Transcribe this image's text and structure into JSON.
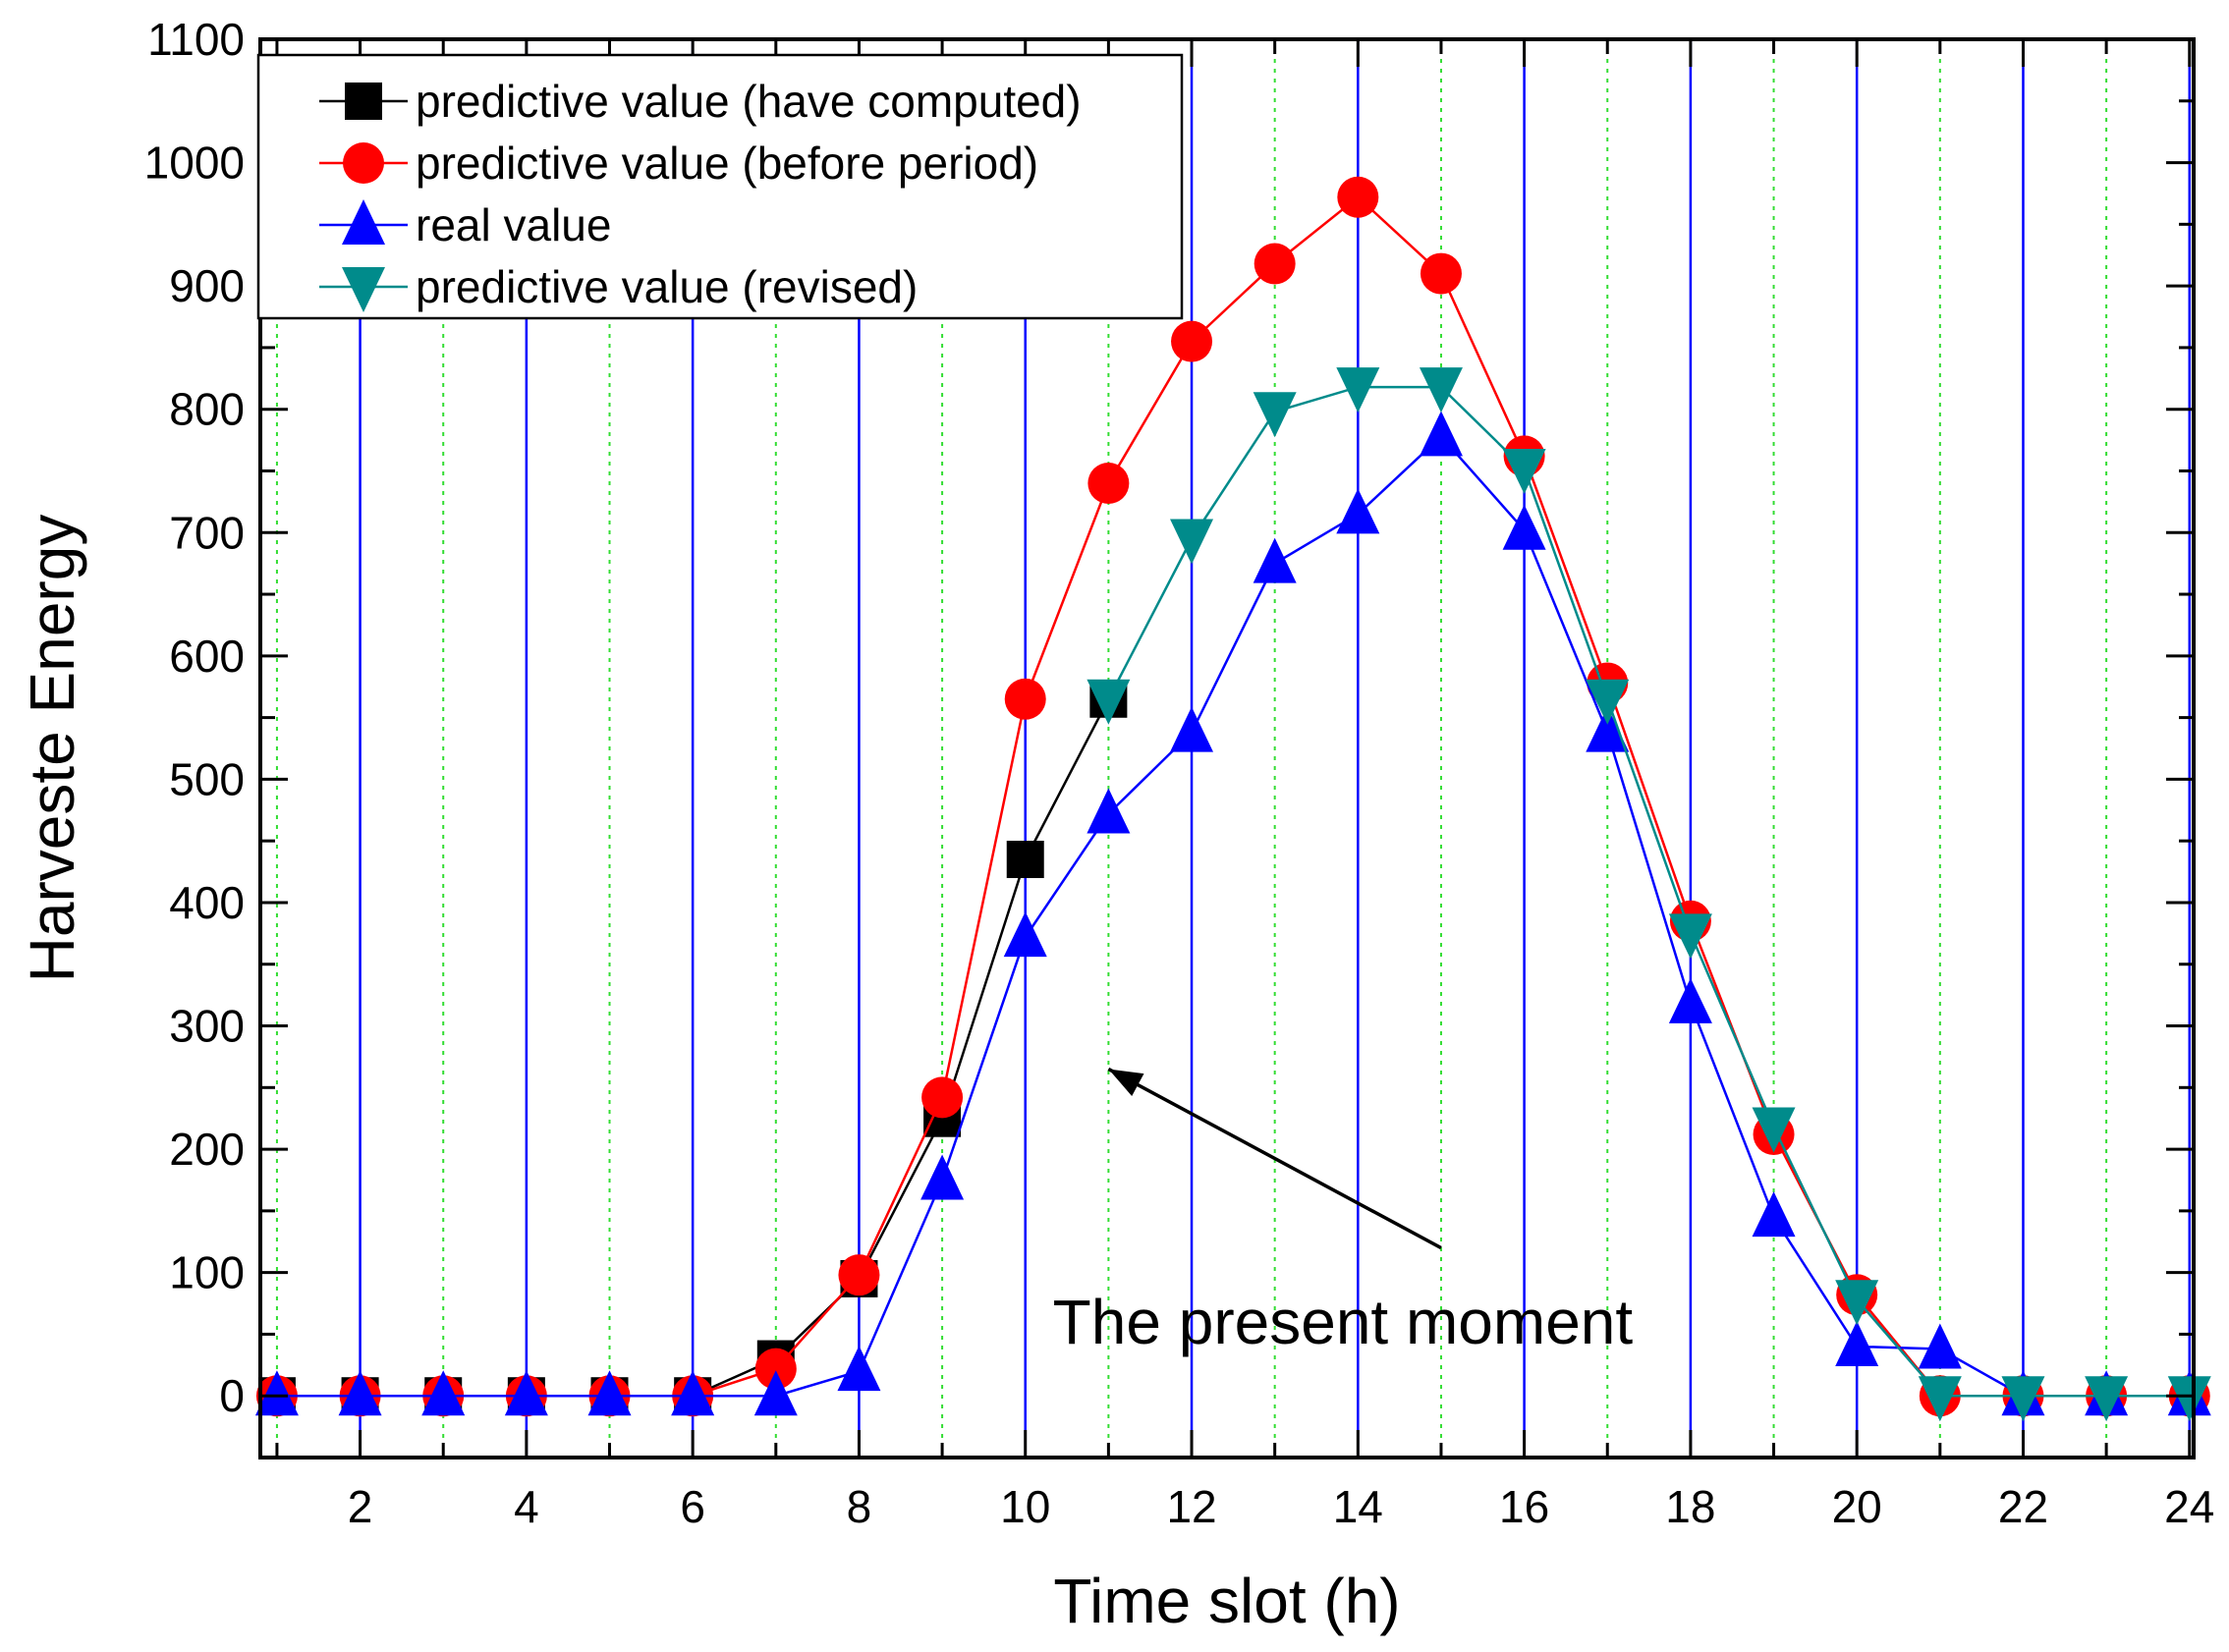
{
  "chart_data": {
    "type": "line",
    "title": "",
    "xlabel": "Time slot  (h)",
    "ylabel": "Harveste Energy",
    "xlim": [
      0.8,
      24.05
    ],
    "ylim": [
      -50,
      1100
    ],
    "x_ticks": [
      2,
      4,
      6,
      8,
      10,
      12,
      14,
      16,
      18,
      20,
      22,
      24
    ],
    "x_tick_labels": [
      "2",
      "4",
      "6",
      "8",
      "10",
      "12",
      "14",
      "16",
      "18",
      "20",
      "22",
      "24"
    ],
    "y_ticks": [
      0,
      100,
      200,
      300,
      400,
      500,
      600,
      700,
      800,
      900,
      1000,
      1100
    ],
    "y_tick_labels": [
      "0",
      "100",
      "200",
      "300",
      "400",
      "500",
      "600",
      "700",
      "800",
      "900",
      "1000",
      "1100"
    ],
    "major_grid_x": [
      2,
      4,
      6,
      8,
      10,
      12,
      14,
      16,
      18,
      20,
      22,
      24
    ],
    "minor_grid_x": [
      1,
      3,
      5,
      7,
      9,
      11,
      13,
      15,
      17,
      19,
      21,
      23
    ],
    "grid_colors": {
      "major": "#0000ff",
      "minor": "#33dd33"
    },
    "legend_position": "top-left",
    "series": [
      {
        "name": "predictive value (have computed)",
        "color": "#000000",
        "marker": "square",
        "x": [
          1,
          2,
          3,
          4,
          5,
          6,
          7,
          8,
          9,
          10,
          11
        ],
        "values": [
          0,
          0,
          0,
          0,
          0,
          0,
          30,
          95,
          225,
          435,
          565
        ]
      },
      {
        "name": "predictive value (before  period)",
        "color": "#ff0000",
        "marker": "circle",
        "x": [
          1,
          2,
          3,
          4,
          5,
          6,
          7,
          8,
          9,
          10,
          11,
          12,
          13,
          14,
          15,
          16,
          17,
          18,
          19,
          20,
          21,
          22,
          23,
          24
        ],
        "values": [
          0,
          0,
          0,
          0,
          0,
          0,
          22,
          98,
          242,
          565,
          740,
          855,
          918,
          972,
          910,
          762,
          578,
          385,
          212,
          82,
          0,
          0,
          0,
          0
        ]
      },
      {
        "name": "real value",
        "color": "#0000ff",
        "marker": "triangle-up",
        "x": [
          1,
          2,
          3,
          4,
          5,
          6,
          7,
          8,
          9,
          10,
          11,
          12,
          13,
          14,
          15,
          16,
          17,
          18,
          19,
          20,
          21,
          22,
          23,
          24
        ],
        "values": [
          0,
          0,
          0,
          0,
          0,
          0,
          0,
          20,
          175,
          372,
          472,
          538,
          675,
          715,
          778,
          702,
          538,
          318,
          145,
          40,
          38,
          0,
          0,
          0
        ]
      },
      {
        "name": "predictive value (revised)",
        "color": "#008b8b",
        "marker": "triangle-down",
        "x": [
          11,
          12,
          13,
          14,
          15,
          16,
          17,
          18,
          19,
          20,
          21,
          22,
          23,
          24
        ],
        "values": [
          565,
          695,
          798,
          818,
          818,
          752,
          565,
          375,
          218,
          78,
          0,
          0,
          0,
          0
        ]
      }
    ],
    "annotation": {
      "text": "The present moment",
      "arrow_from": [
        15,
        120
      ],
      "arrow_to": [
        11,
        265
      ],
      "text_at": [
        13.7,
        60
      ]
    }
  }
}
